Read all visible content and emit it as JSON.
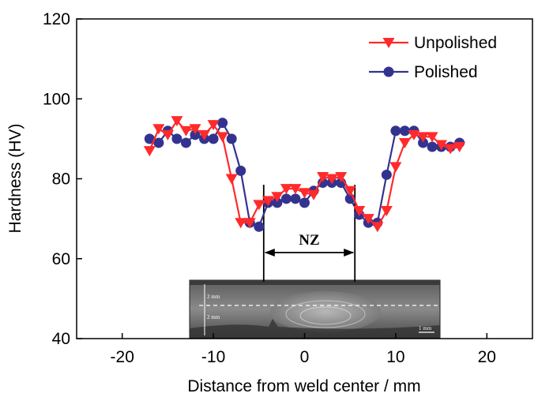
{
  "chart_data": {
    "type": "line",
    "title": "",
    "xlabel": "Distance from weld center / mm",
    "ylabel": "Hardness (HV)",
    "xlim": [
      -25,
      25
    ],
    "ylim": [
      40,
      120
    ],
    "xticks": [
      -20,
      -10,
      0,
      10,
      20
    ],
    "yticks": [
      40,
      60,
      80,
      100,
      120
    ],
    "legend_position": "top-right",
    "grid": false,
    "series": [
      {
        "name": "Unpolished",
        "color": "#ff2a2a",
        "marker": "triangle-down",
        "points": [
          [
            -17,
            87
          ],
          [
            -16,
            92.5
          ],
          [
            -15,
            91
          ],
          [
            -14,
            94.5
          ],
          [
            -13,
            92
          ],
          [
            -12,
            92.5
          ],
          [
            -11,
            91
          ],
          [
            -10,
            93.5
          ],
          [
            -9,
            90.5
          ],
          [
            -8,
            80
          ],
          [
            -7,
            69
          ],
          [
            -6,
            69
          ],
          [
            -5,
            73.5
          ],
          [
            -4,
            74.5
          ],
          [
            -3,
            75.5
          ],
          [
            -2,
            77.5
          ],
          [
            -1,
            77.5
          ],
          [
            0,
            76.5
          ],
          [
            1,
            76
          ],
          [
            2,
            80.5
          ],
          [
            3,
            80
          ],
          [
            4,
            80.5
          ],
          [
            5,
            77
          ],
          [
            6,
            72
          ],
          [
            7,
            70
          ],
          [
            8,
            68
          ],
          [
            9,
            72
          ],
          [
            10,
            83
          ],
          [
            11,
            89
          ],
          [
            12,
            91
          ],
          [
            13,
            90.5
          ],
          [
            14,
            90.5
          ],
          [
            15,
            88.5
          ],
          [
            16,
            87.5
          ],
          [
            17,
            88
          ]
        ]
      },
      {
        "name": "Polished",
        "color": "#33338f",
        "marker": "circle",
        "points": [
          [
            -17,
            90
          ],
          [
            -16,
            89
          ],
          [
            -15,
            92
          ],
          [
            -14,
            90
          ],
          [
            -13,
            89
          ],
          [
            -12,
            91
          ],
          [
            -11,
            90
          ],
          [
            -10,
            90
          ],
          [
            -9,
            94
          ],
          [
            -8,
            90
          ],
          [
            -7,
            82
          ],
          [
            -6,
            69
          ],
          [
            -5,
            68
          ],
          [
            -4,
            74
          ],
          [
            -3,
            74
          ],
          [
            -2,
            75
          ],
          [
            -1,
            75
          ],
          [
            0,
            74
          ],
          [
            1,
            77
          ],
          [
            2,
            79
          ],
          [
            3,
            79
          ],
          [
            4,
            79
          ],
          [
            5,
            75
          ],
          [
            6,
            71
          ],
          [
            7,
            69
          ],
          [
            8,
            69
          ],
          [
            9,
            81
          ],
          [
            10,
            92
          ],
          [
            11,
            92
          ],
          [
            12,
            92
          ],
          [
            13,
            89
          ],
          [
            14,
            88
          ],
          [
            15,
            88
          ],
          [
            16,
            88
          ],
          [
            17,
            89
          ]
        ]
      }
    ],
    "annotations": [
      {
        "text": "NZ",
        "x_range": [
          -5,
          5
        ]
      }
    ],
    "inset": {
      "description_visible_text": [
        "2 mm",
        "2 mm",
        "1 mm"
      ],
      "x_range": [
        -13,
        14
      ]
    }
  }
}
